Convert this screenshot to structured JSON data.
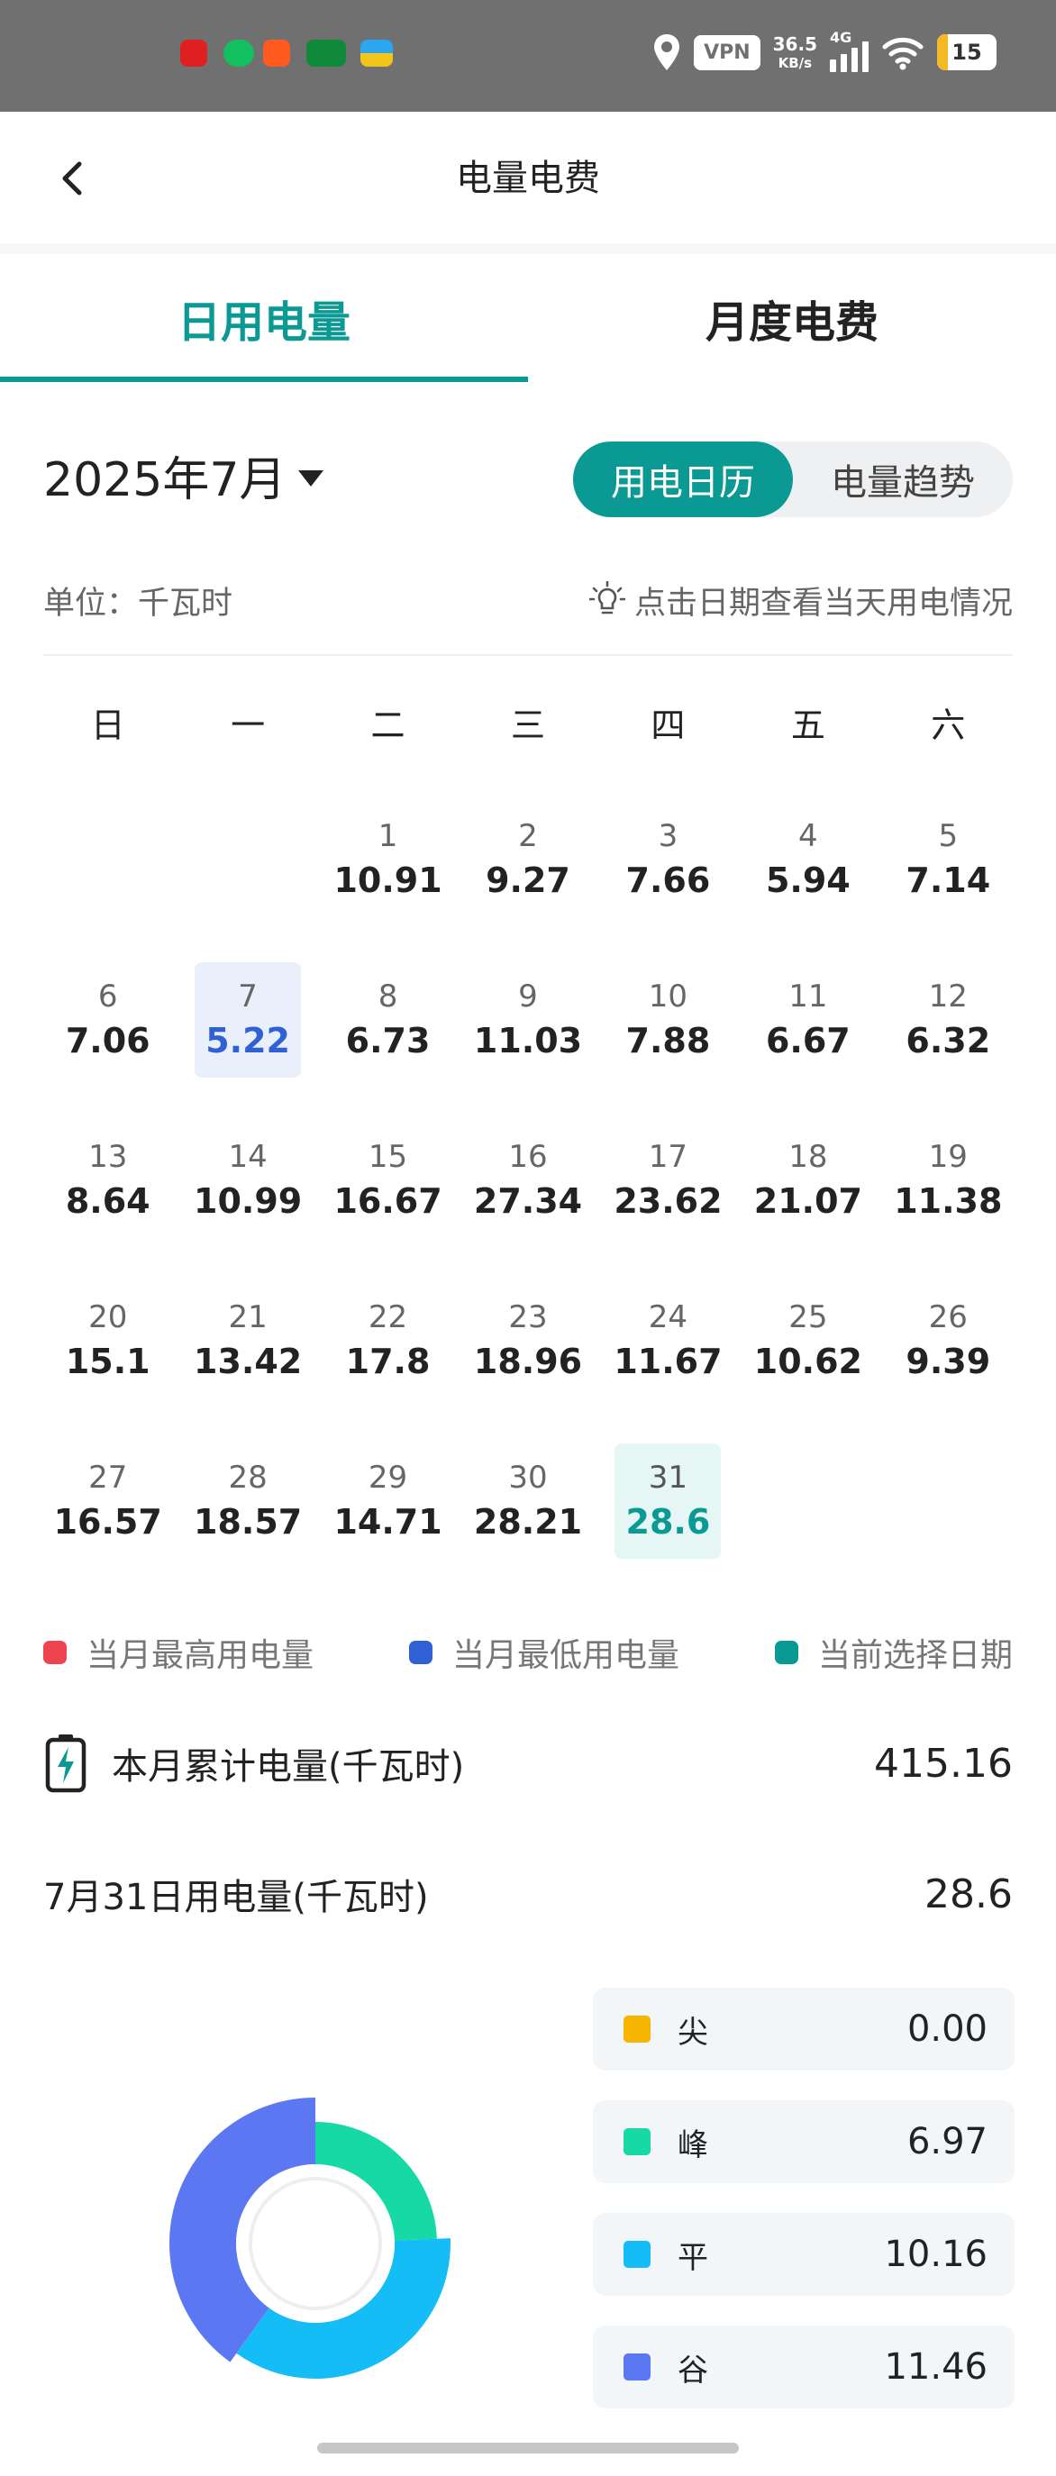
{
  "status_bar": {
    "vpn": "VPN",
    "speed_value": "36.5",
    "speed_unit": "KB/s",
    "network": "4G",
    "battery": "15"
  },
  "header": {
    "title": "电量电费"
  },
  "tabs": [
    {
      "label": "日用电量",
      "active": true
    },
    {
      "label": "月度电费",
      "active": false
    }
  ],
  "month_selector": {
    "label": "2025年7月"
  },
  "view_toggle": {
    "calendar_label": "用电日历",
    "trend_label": "电量趋势",
    "active": "用电日历"
  },
  "unit_text": "单位：千瓦时",
  "hint_text": "点击日期查看当天用电情况",
  "weekdays": [
    "日",
    "一",
    "二",
    "三",
    "四",
    "五",
    "六"
  ],
  "calendar": {
    "first_weekday_index": 2,
    "days": [
      {
        "day": "1",
        "value": "10.91"
      },
      {
        "day": "2",
        "value": "9.27"
      },
      {
        "day": "3",
        "value": "7.66"
      },
      {
        "day": "4",
        "value": "5.94"
      },
      {
        "day": "5",
        "value": "7.14"
      },
      {
        "day": "6",
        "value": "7.06"
      },
      {
        "day": "7",
        "value": "5.22",
        "state": "lowest"
      },
      {
        "day": "8",
        "value": "6.73"
      },
      {
        "day": "9",
        "value": "11.03"
      },
      {
        "day": "10",
        "value": "7.88"
      },
      {
        "day": "11",
        "value": "6.67"
      },
      {
        "day": "12",
        "value": "6.32"
      },
      {
        "day": "13",
        "value": "8.64"
      },
      {
        "day": "14",
        "value": "10.99"
      },
      {
        "day": "15",
        "value": "16.67"
      },
      {
        "day": "16",
        "value": "27.34"
      },
      {
        "day": "17",
        "value": "23.62"
      },
      {
        "day": "18",
        "value": "21.07"
      },
      {
        "day": "19",
        "value": "11.38"
      },
      {
        "day": "20",
        "value": "15.1"
      },
      {
        "day": "21",
        "value": "13.42"
      },
      {
        "day": "22",
        "value": "17.8"
      },
      {
        "day": "23",
        "value": "18.96"
      },
      {
        "day": "24",
        "value": "11.67"
      },
      {
        "day": "25",
        "value": "10.62"
      },
      {
        "day": "26",
        "value": "9.39"
      },
      {
        "day": "27",
        "value": "16.57"
      },
      {
        "day": "28",
        "value": "18.57"
      },
      {
        "day": "29",
        "value": "14.71"
      },
      {
        "day": "30",
        "value": "28.21"
      },
      {
        "day": "31",
        "value": "28.6",
        "state": "selected"
      }
    ]
  },
  "legend": [
    {
      "label": "当月最高用电量",
      "color": "#ee4450"
    },
    {
      "label": "当月最低用电量",
      "color": "#2f61d5"
    },
    {
      "label": "当前选择日期",
      "color": "#0b9a93"
    }
  ],
  "monthly_total": {
    "label": "本月累计电量(千瓦时)",
    "value": "415.16"
  },
  "selected_day": {
    "label": "7月31日用电量(千瓦时)",
    "value": "28.6"
  },
  "breakdown": [
    {
      "name": "尖",
      "value": "0.00",
      "amount": 0.0,
      "color": "#f7b500"
    },
    {
      "name": "峰",
      "value": "6.97",
      "amount": 6.97,
      "color": "#17d9a6"
    },
    {
      "name": "平",
      "value": "10.16",
      "amount": 10.16,
      "color": "#14bdf5"
    },
    {
      "name": "谷",
      "value": "11.46",
      "amount": 11.46,
      "color": "#5b78f2"
    }
  ]
}
